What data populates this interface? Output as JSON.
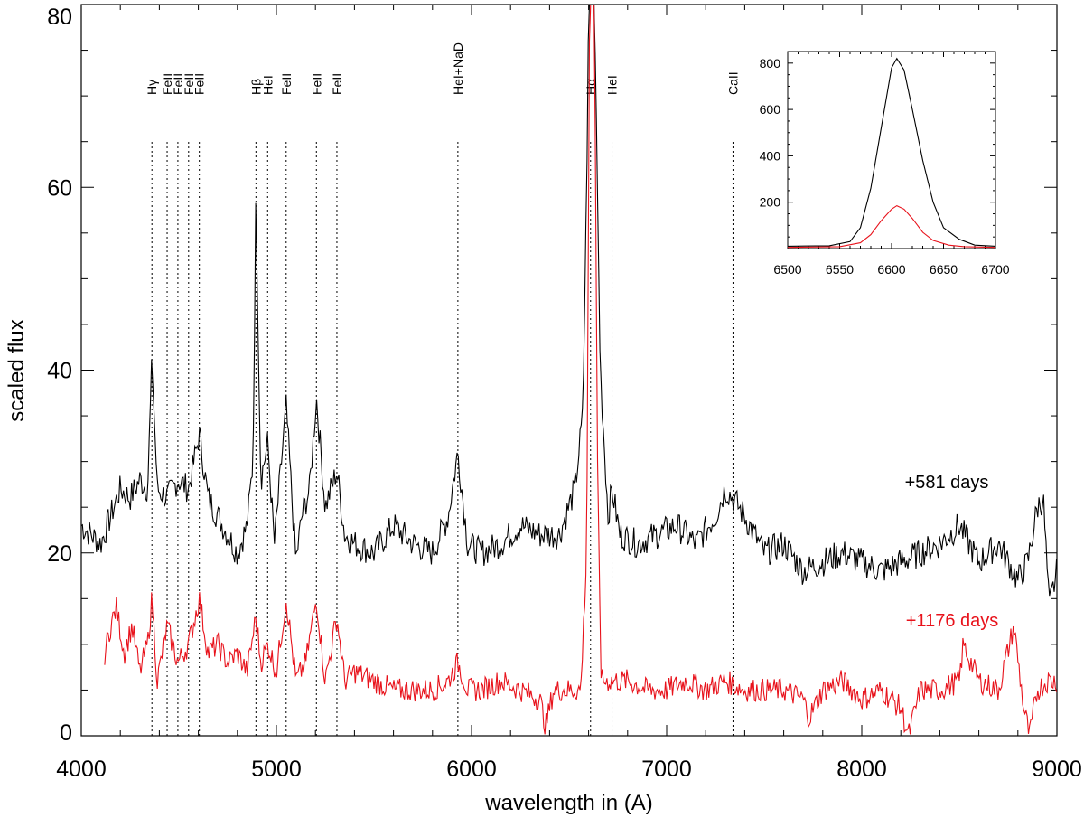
{
  "chart_data": {
    "type": "line",
    "xlabel": "wavelength in (A)",
    "ylabel": "scaled flux",
    "xlim": [
      4000,
      9000
    ],
    "ylim": [
      0,
      80
    ],
    "xticks": [
      "4000",
      "5000",
      "6000",
      "7000",
      "8000",
      "9000"
    ],
    "yticks": [
      "0",
      "20",
      "40",
      "60",
      "80"
    ],
    "line_markers": [
      {
        "label": "Hγ",
        "x": 4362
      },
      {
        "label": "FeII",
        "x": 4440
      },
      {
        "label": "FeII",
        "x": 4495
      },
      {
        "label": "FeII",
        "x": 4550
      },
      {
        "label": "FeII",
        "x": 4605
      },
      {
        "label": "Hβ",
        "x": 4895
      },
      {
        "label": "HeI",
        "x": 4955
      },
      {
        "label": "FeII",
        "x": 5050
      },
      {
        "label": "FeII",
        "x": 5205
      },
      {
        "label": "FeII",
        "x": 5310
      },
      {
        "label": "HeI+NaD",
        "x": 5930
      },
      {
        "label": "Hα",
        "x": 6610
      },
      {
        "label": "HeI",
        "x": 6720
      },
      {
        "label": "CaII",
        "x": 7340
      }
    ],
    "series": [
      {
        "name": "+581 days",
        "color": "#000000",
        "x": [
          4000,
          4050,
          4100,
          4150,
          4200,
          4250,
          4300,
          4340,
          4362,
          4390,
          4440,
          4495,
          4550,
          4605,
          4650,
          4700,
          4750,
          4800,
          4850,
          4880,
          4895,
          4920,
          4955,
          4990,
          5050,
          5100,
          5130,
          5170,
          5205,
          5250,
          5310,
          5350,
          5400,
          5500,
          5600,
          5700,
          5800,
          5880,
          5930,
          5980,
          6050,
          6150,
          6250,
          6350,
          6450,
          6530,
          6570,
          6590,
          6600,
          6615,
          6630,
          6660,
          6700,
          6720,
          6760,
          6850,
          6950,
          7050,
          7150,
          7250,
          7300,
          7340,
          7400,
          7500,
          7600,
          7700,
          7800,
          7900,
          8000,
          8100,
          8200,
          8300,
          8400,
          8500,
          8600,
          8700,
          8800,
          8850,
          8900,
          8930,
          8960,
          9000
        ],
        "values": [
          23,
          22,
          21,
          24,
          27,
          26,
          28,
          27,
          41,
          27,
          26,
          28,
          27,
          33,
          26,
          24,
          22,
          20,
          23,
          30,
          59,
          28,
          32,
          21,
          36,
          19,
          24,
          27,
          37,
          25,
          29,
          22,
          21,
          20,
          23,
          21,
          20,
          24,
          31,
          21,
          20,
          21,
          23,
          22,
          22,
          27,
          35,
          60,
          80,
          80,
          80,
          40,
          24,
          27,
          22,
          21,
          22,
          23,
          21,
          24,
          27,
          26,
          24,
          20,
          21,
          18,
          19,
          20,
          19,
          18,
          19,
          20,
          21,
          23,
          19,
          21,
          17,
          19,
          25,
          26,
          14,
          18
        ]
      },
      {
        "name": "+1176 days",
        "color": "#e8121b",
        "x": [
          4120,
          4150,
          4180,
          4220,
          4260,
          4300,
          4340,
          4362,
          4390,
          4440,
          4495,
          4550,
          4605,
          4650,
          4700,
          4750,
          4800,
          4850,
          4895,
          4920,
          4955,
          5000,
          5050,
          5100,
          5150,
          5205,
          5250,
          5310,
          5350,
          5400,
          5500,
          5600,
          5700,
          5800,
          5880,
          5930,
          5980,
          6050,
          6150,
          6250,
          6350,
          6380,
          6420,
          6500,
          6560,
          6590,
          6605,
          6615,
          6630,
          6645,
          6665,
          6700,
          6800,
          6900,
          7000,
          7100,
          7200,
          7300,
          7400,
          7500,
          7600,
          7700,
          7730,
          7800,
          7900,
          8000,
          8100,
          8200,
          8240,
          8300,
          8400,
          8500,
          8520,
          8600,
          8700,
          8780,
          8830,
          8860,
          8900,
          8950,
          9000
        ],
        "values": [
          9,
          12,
          14,
          9,
          12,
          7,
          10,
          15,
          6,
          12,
          8,
          10,
          15,
          9,
          10,
          8,
          9,
          7,
          13,
          8,
          10,
          7,
          15,
          6,
          8,
          15,
          6,
          13,
          6,
          7,
          6,
          5,
          5,
          5,
          6,
          8,
          5,
          5,
          6,
          5,
          4,
          1,
          5,
          5,
          5,
          20,
          80,
          80,
          80,
          30,
          6,
          6,
          6,
          5,
          5,
          6,
          5,
          6,
          5,
          5,
          5,
          4,
          2,
          5,
          6,
          4,
          5,
          3,
          0,
          5,
          5,
          6,
          10,
          6,
          5,
          12,
          3,
          0,
          5,
          6,
          6
        ]
      }
    ],
    "annotations": [
      {
        "text": "+581 days",
        "color": "#000000"
      },
      {
        "text": "+1176 days",
        "color": "#e8121b"
      }
    ],
    "inset": {
      "xlim": [
        6500,
        6700
      ],
      "ylim": [
        0,
        850
      ],
      "xticks": [
        "6500",
        "6550",
        "6600",
        "6650",
        "6700"
      ],
      "yticks": [
        "200",
        "400",
        "600",
        "800"
      ],
      "series": [
        {
          "name": "+581 days",
          "color": "#000000",
          "x": [
            6500,
            6540,
            6560,
            6570,
            6580,
            6590,
            6600,
            6605,
            6612,
            6620,
            6630,
            6640,
            6650,
            6665,
            6680,
            6700
          ],
          "values": [
            10,
            12,
            30,
            90,
            260,
            520,
            780,
            820,
            770,
            600,
            380,
            200,
            90,
            40,
            15,
            10
          ]
        },
        {
          "name": "+1176 days",
          "color": "#e8121b",
          "x": [
            6500,
            6550,
            6570,
            6580,
            6590,
            6600,
            6605,
            6612,
            6620,
            6630,
            6640,
            6655,
            6670,
            6700
          ],
          "values": [
            5,
            8,
            25,
            60,
            120,
            170,
            185,
            170,
            130,
            70,
            35,
            15,
            8,
            5
          ]
        }
      ]
    }
  }
}
